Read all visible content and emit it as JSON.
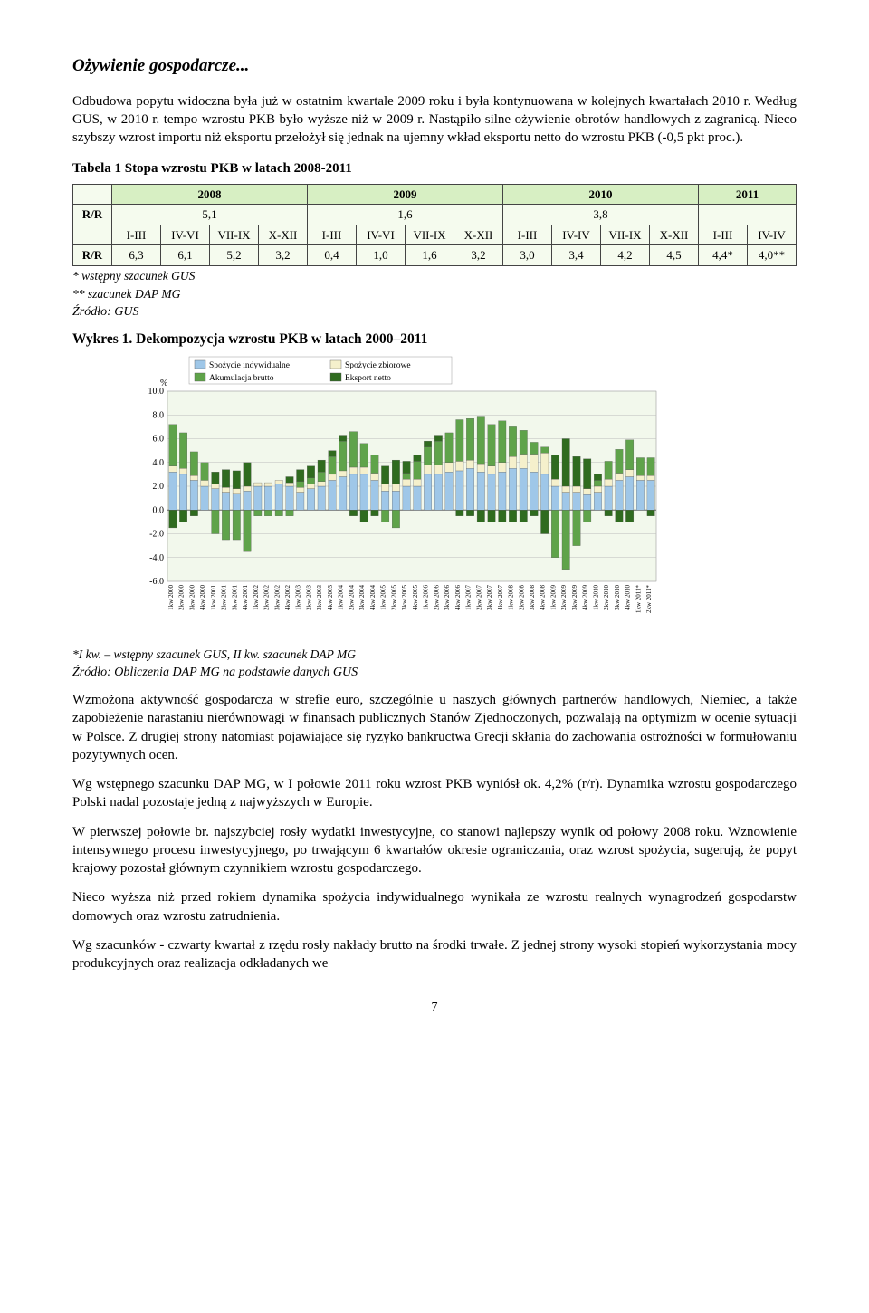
{
  "title": "Ożywienie gospodarcze...",
  "para1": "Odbudowa popytu widoczna była już w ostatnim kwartale 2009 roku i była kontynuowana w kolejnych kwartałach 2010 r. Według GUS, w 2010 r. tempo wzrostu PKB było wyższe niż w 2009 r. Nastąpiło silne ożywienie obrotów handlowych z zagranicą. Nieco szybszy wzrost importu niż eksportu przełożył się jednak na ujemny wkład eksportu netto do wzrostu PKB (-0,5 pkt proc.).",
  "table1": {
    "caption": "Tabela 1 Stopa wzrostu PKB w latach 2008-2011",
    "years": [
      "2008",
      "2009",
      "2010",
      "2011"
    ],
    "rr_label": "R/R",
    "annual": [
      "5,1",
      "1,6",
      "3,8",
      ""
    ],
    "period_headers": [
      "I-III",
      "IV-VI",
      "VII-IX",
      "X-XII",
      "I-III",
      "IV-VI",
      "VII-IX",
      "X-XII",
      "I-III",
      "IV-IV",
      "VII-IX",
      "X-XII",
      "I-III",
      "IV-IV"
    ],
    "rr_values": [
      "6,3",
      "6,1",
      "5,2",
      "3,2",
      "0,4",
      "1,0",
      "1,6",
      "3,2",
      "3,0",
      "3,4",
      "4,2",
      "4,5",
      "4,4*",
      "4,0**"
    ],
    "note1": "* wstępny szacunek GUS",
    "note2": "** szacunek DAP MG",
    "src": "Źródło: GUS"
  },
  "chart1": {
    "title": "Wykres 1. Dekompozycja wzrostu PKB w latach 2000–2011",
    "type": "stacked-bar",
    "legend": {
      "items": [
        "Spożycie indywidualne",
        "Spożycie zbiorowe",
        "Akumulacja brutto",
        "Eksport netto"
      ],
      "colors": [
        "#9fc7e8",
        "#f5f0cc",
        "#5fa34a",
        "#2f6b1f"
      ]
    },
    "ylim": [
      -6,
      10
    ],
    "ytick_step": 2,
    "yunit": "%",
    "background_color": "#ffffff",
    "plot_bg": "#f2f8ec",
    "grid_color": "#bcbcbc",
    "categories": [
      "1kw 2000",
      "2kw 2000",
      "3kw 2000",
      "4kw 2000",
      "1kw 2001",
      "2kw 2001",
      "3kw 2001",
      "4kw 2001",
      "1kw 2002",
      "2kw 2002",
      "3kw 2002",
      "4kw 2002",
      "1kw 2003",
      "2kw 2003",
      "3kw 2003",
      "4kw 2003",
      "1kw 2004",
      "2kw 2004",
      "3kw 2004",
      "4kw 2004",
      "1kw 2005",
      "2kw 2005",
      "3kw 2005",
      "4kw 2005",
      "1kw 2006",
      "2kw 2006",
      "3kw 2006",
      "4kw 2006",
      "1kw 2007",
      "2kw 2007",
      "3kw 2007",
      "4kw 2007",
      "1kw 2008",
      "2kw 2008",
      "3kw 2008",
      "4kw 2008",
      "1kw 2009",
      "2kw 2009",
      "3kw 2009",
      "4kw 2009",
      "1kw 2010",
      "2kw 2010",
      "3kw 2010",
      "4kw 2010",
      "1kw 2011*",
      "2kw 2011*"
    ],
    "series": {
      "spozycie_indywidualne": [
        3.2,
        3.0,
        2.5,
        2.0,
        1.8,
        1.5,
        1.4,
        1.6,
        2.0,
        2.0,
        2.2,
        2.0,
        1.5,
        1.8,
        2.0,
        2.5,
        2.8,
        3.0,
        3.0,
        2.5,
        1.6,
        1.6,
        2.0,
        2.0,
        3.0,
        3.0,
        3.2,
        3.3,
        3.5,
        3.2,
        3.0,
        3.2,
        3.5,
        3.5,
        3.2,
        3.0,
        2.0,
        1.5,
        1.5,
        1.3,
        1.5,
        2.0,
        2.5,
        2.8,
        2.5,
        2.5
      ],
      "spozycie_zbiorowe": [
        0.5,
        0.5,
        0.4,
        0.5,
        0.4,
        0.4,
        0.4,
        0.4,
        0.3,
        0.3,
        0.3,
        0.3,
        0.4,
        0.4,
        0.4,
        0.5,
        0.5,
        0.6,
        0.6,
        0.6,
        0.6,
        0.6,
        0.6,
        0.6,
        0.8,
        0.8,
        0.8,
        0.8,
        0.7,
        0.7,
        0.7,
        0.8,
        1.0,
        1.2,
        1.5,
        1.8,
        0.6,
        0.5,
        0.5,
        0.5,
        0.5,
        0.6,
        0.6,
        0.6,
        0.4,
        0.4
      ],
      "akumulacja_brutto": [
        3.5,
        3.0,
        2.0,
        1.5,
        -2.0,
        -2.5,
        -2.5,
        -3.5,
        -0.5,
        -0.5,
        -0.5,
        -0.5,
        0.5,
        0.5,
        0.8,
        1.5,
        2.5,
        3.0,
        2.0,
        1.5,
        -1.0,
        -1.5,
        0.5,
        1.5,
        1.5,
        2.0,
        2.5,
        3.5,
        3.5,
        4.0,
        3.5,
        3.5,
        2.5,
        2.0,
        1.0,
        0.5,
        -4.0,
        -5.0,
        -3.0,
        -1.0,
        0.5,
        1.5,
        2.0,
        2.5,
        1.5,
        1.5
      ],
      "eksport_netto": [
        -1.5,
        -1.0,
        -0.5,
        0.0,
        1.0,
        1.5,
        1.5,
        2.0,
        0.0,
        0.0,
        0.0,
        0.5,
        1.0,
        1.0,
        1.0,
        0.5,
        0.5,
        -0.5,
        -1.0,
        -0.5,
        1.5,
        2.0,
        1.0,
        0.5,
        0.5,
        0.5,
        0.0,
        -0.5,
        -0.5,
        -1.0,
        -1.0,
        -1.0,
        -1.0,
        -1.0,
        -0.5,
        -2.0,
        2.0,
        4.0,
        2.5,
        2.5,
        0.5,
        -0.5,
        -1.0,
        -1.0,
        0.0,
        -0.5
      ]
    },
    "bar_width": 0.72,
    "footnote": "*I kw. – wstępny szacunek GUS, II kw. szacunek DAP MG",
    "src": "Źródło: Obliczenia DAP MG na podstawie danych GUS"
  },
  "para2": "Wzmożona aktywność gospodarcza w strefie euro, szczególnie u naszych głównych partnerów handlowych, Niemiec, a także zapobieżenie narastaniu nierównowagi w finansach publicznych Stanów Zjednoczonych, pozwalają na optymizm w ocenie sytuacji w Polsce. Z drugiej strony natomiast pojawiające się ryzyko bankructwa Grecji skłania do zachowania ostrożności w formułowaniu pozytywnych ocen.",
  "para3": "Wg wstępnego szacunku DAP MG, w I połowie 2011 roku wzrost PKB wyniósł ok. 4,2% (r/r). Dynamika wzrostu gospodarczego Polski nadal pozostaje jedną z najwyższych w Europie.",
  "para4": "W pierwszej połowie br. najszybciej rosły wydatki inwestycyjne, co stanowi najlepszy wynik od połowy 2008 roku. Wznowienie intensywnego procesu inwestycyjnego, po trwającym 6 kwartałów okresie ograniczania, oraz wzrost spożycia, sugerują, że popyt krajowy pozostał głównym czynnikiem wzrostu gospodarczego.",
  "para5": "Nieco wyższa niż przed rokiem dynamika spożycia indywidualnego wynikała ze wzrostu realnych wynagrodzeń gospodarstw domowych oraz wzrostu zatrudnienia.",
  "para6": "Wg szacunków - czwarty kwartał z rzędu rosły nakłady brutto na środki trwałe. Z jednej strony wysoki stopień wykorzystania mocy produkcyjnych oraz realizacja odkładanych we",
  "page_number": "7"
}
